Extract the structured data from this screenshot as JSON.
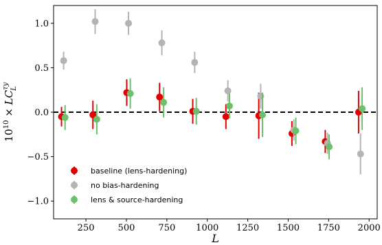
{
  "chart_data": {
    "type": "scatter",
    "title": "",
    "xlabel": "L",
    "ylabel": "10^10 × L C_L^{τy}",
    "ylabel_parts": {
      "prefix": "10",
      "exp": "10",
      "times": " × ",
      "main": "LC",
      "sup": "τy",
      "sub": "L"
    },
    "xlim": [
      50,
      2050
    ],
    "ylim": [
      -1.2,
      1.2
    ],
    "x_ticks": [
      250,
      500,
      750,
      1000,
      1250,
      1500,
      1750,
      2000
    ],
    "y_ticks": [
      -1.0,
      -0.5,
      0.0,
      0.5,
      1.0
    ],
    "y_tick_labels": [
      "−1.0",
      "−0.5",
      "0.0",
      "0.5",
      "1.0"
    ],
    "reference_line": {
      "y": 0.0,
      "style": "dashed",
      "color": "#000000"
    },
    "legend_position": "lower-left",
    "series": [
      {
        "name": "baseline (lens-hardening)",
        "color": "#e00000",
        "alpha": 1.0,
        "x": [
          99,
          293,
          502,
          705,
          910,
          1115,
          1318,
          1523,
          1729,
          1935
        ],
        "y": [
          -0.05,
          -0.03,
          0.22,
          0.17,
          0.01,
          -0.05,
          -0.04,
          -0.24,
          -0.33,
          0.0
        ],
        "err": [
          0.11,
          0.16,
          0.15,
          0.16,
          0.14,
          0.14,
          0.26,
          0.14,
          0.13,
          0.24
        ]
      },
      {
        "name": "no bias-hardening",
        "color": "#b4b4b4",
        "alpha": 1.0,
        "x": [
          112,
          307,
          513,
          719,
          922,
          1127,
          1330,
          1535,
          1743,
          1947
        ],
        "y": [
          0.58,
          1.02,
          1.0,
          0.78,
          0.56,
          0.24,
          0.18,
          -0.2,
          -0.35,
          -0.47
        ],
        "err": [
          0.1,
          0.14,
          0.13,
          0.14,
          0.12,
          0.12,
          0.14,
          0.12,
          0.12,
          0.23
        ]
      },
      {
        "name": "lens & source-hardening",
        "color": "#6cbf6c",
        "alpha": 1.0,
        "x": [
          121,
          317,
          524,
          730,
          932,
          1137,
          1341,
          1547,
          1753,
          1957
        ],
        "y": [
          -0.06,
          -0.08,
          0.21,
          0.11,
          0.01,
          0.07,
          -0.03,
          -0.21,
          -0.39,
          0.04
        ],
        "err": [
          0.14,
          0.17,
          0.17,
          0.17,
          0.15,
          0.14,
          0.25,
          0.15,
          0.14,
          0.24
        ]
      }
    ]
  }
}
